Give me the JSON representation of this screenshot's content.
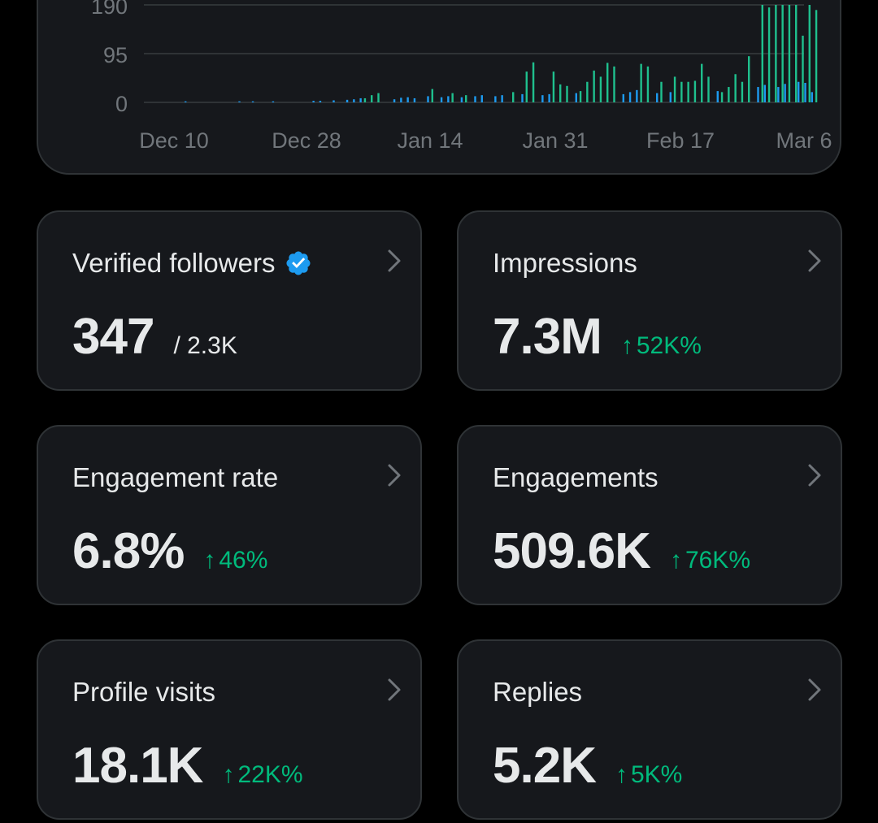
{
  "colors": {
    "background": "#000000",
    "card": "#16181c",
    "border": "#2f3336",
    "text": "#e7e9ea",
    "muted": "#71767b",
    "positive": "#00ba7c",
    "bar_green": "#1fc08e",
    "bar_blue": "#1d9bf0",
    "verified": "#1d9bf0"
  },
  "chart_data": {
    "type": "bar",
    "y_ticks": [
      "0",
      "95",
      "190"
    ],
    "ylim": [
      0,
      190
    ],
    "x_ticks": [
      "Dec 10",
      "Dec 28",
      "Jan 14",
      "Jan 31",
      "Feb 17",
      "Mar 6"
    ],
    "x_range": [
      "2023-12-04",
      "2024-03-11"
    ],
    "series": [
      {
        "color": "#1fc08e",
        "points": [
          [
            "2024-01-06",
            8
          ],
          [
            "2024-01-07",
            14
          ],
          [
            "2024-01-08",
            18
          ],
          [
            "2024-01-16",
            26
          ],
          [
            "2024-01-19",
            18
          ],
          [
            "2024-01-21",
            14
          ],
          [
            "2024-01-28",
            20
          ],
          [
            "2024-01-30",
            60
          ],
          [
            "2024-01-31",
            78
          ],
          [
            "2024-02-03",
            60
          ],
          [
            "2024-02-04",
            35
          ],
          [
            "2024-02-05",
            32
          ],
          [
            "2024-02-07",
            22
          ],
          [
            "2024-02-08",
            40
          ],
          [
            "2024-02-09",
            62
          ],
          [
            "2024-02-10",
            50
          ],
          [
            "2024-02-11",
            77
          ],
          [
            "2024-02-12",
            70
          ],
          [
            "2024-02-16",
            75
          ],
          [
            "2024-02-17",
            70
          ],
          [
            "2024-02-19",
            40
          ],
          [
            "2024-02-21",
            50
          ],
          [
            "2024-02-22",
            40
          ],
          [
            "2024-02-23",
            40
          ],
          [
            "2024-02-24",
            42
          ],
          [
            "2024-02-25",
            75
          ],
          [
            "2024-02-26",
            50
          ],
          [
            "2024-02-28",
            20
          ],
          [
            "2024-02-29",
            30
          ],
          [
            "2024-03-01",
            55
          ],
          [
            "2024-03-02",
            40
          ],
          [
            "2024-03-03",
            90
          ],
          [
            "2024-03-05",
            190
          ],
          [
            "2024-03-06",
            185
          ],
          [
            "2024-03-07",
            190
          ],
          [
            "2024-03-08",
            190
          ],
          [
            "2024-03-09",
            190
          ],
          [
            "2024-03-10",
            190
          ],
          [
            "2024-03-11",
            130
          ],
          [
            "2024-03-12",
            190
          ],
          [
            "2024-03-13",
            180
          ]
        ]
      },
      {
        "color": "#1d9bf0",
        "points": [
          [
            "2023-12-10",
            2
          ],
          [
            "2023-12-18",
            2
          ],
          [
            "2023-12-20",
            2
          ],
          [
            "2023-12-23",
            2
          ],
          [
            "2023-12-29",
            3
          ],
          [
            "2023-12-30",
            3
          ],
          [
            "2024-01-01",
            4
          ],
          [
            "2024-01-03",
            5
          ],
          [
            "2024-01-04",
            6
          ],
          [
            "2024-01-05",
            8
          ],
          [
            "2024-01-10",
            6
          ],
          [
            "2024-01-11",
            9
          ],
          [
            "2024-01-12",
            10
          ],
          [
            "2024-01-13",
            8
          ],
          [
            "2024-01-15",
            12
          ],
          [
            "2024-01-17",
            10
          ],
          [
            "2024-01-18",
            12
          ],
          [
            "2024-01-20",
            10
          ],
          [
            "2024-01-22",
            12
          ],
          [
            "2024-01-23",
            14
          ],
          [
            "2024-01-25",
            12
          ],
          [
            "2024-01-26",
            14
          ],
          [
            "2024-01-29",
            16
          ],
          [
            "2024-02-01",
            14
          ],
          [
            "2024-02-02",
            16
          ],
          [
            "2024-02-06",
            18
          ],
          [
            "2024-02-13",
            16
          ],
          [
            "2024-02-14",
            20
          ],
          [
            "2024-02-15",
            24
          ],
          [
            "2024-02-18",
            18
          ],
          [
            "2024-02-20",
            20
          ],
          [
            "2024-02-27",
            22
          ],
          [
            "2024-03-04",
            30
          ],
          [
            "2024-03-05",
            34
          ],
          [
            "2024-03-07",
            30
          ],
          [
            "2024-03-08",
            36
          ],
          [
            "2024-03-10",
            40
          ],
          [
            "2024-03-11",
            38
          ],
          [
            "2024-03-12",
            20
          ]
        ]
      }
    ],
    "grid": true,
    "legend": "none"
  },
  "metrics": {
    "verified_followers": {
      "title": "Verified followers",
      "value": "347",
      "total": "/ 2.3K",
      "icon": "verified-badge-icon"
    },
    "impressions": {
      "title": "Impressions",
      "value": "7.3M",
      "arrow": "↑",
      "delta": "52K%"
    },
    "engagement_rate": {
      "title": "Engagement rate",
      "value": "6.8%",
      "arrow": "↑",
      "delta": "46%"
    },
    "engagements": {
      "title": "Engagements",
      "value": "509.6K",
      "arrow": "↑",
      "delta": "76K%"
    },
    "profile_visits": {
      "title": "Profile visits",
      "value": "18.1K",
      "arrow": "↑",
      "delta": "22K%"
    },
    "replies": {
      "title": "Replies",
      "value": "5.2K",
      "arrow": "↑",
      "delta": "5K%"
    }
  }
}
